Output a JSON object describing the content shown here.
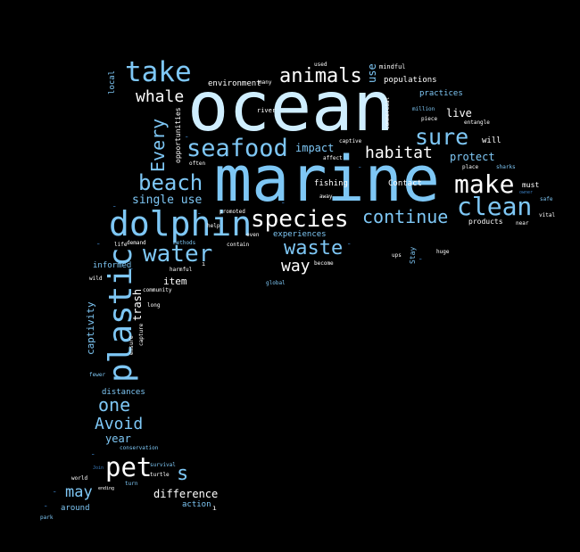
{
  "background_color": "#000000",
  "palette": [
    "#cfeeff",
    "#7ec7f5",
    "#59a9e8",
    "#ffffff",
    "#3b7fc2"
  ],
  "words": {
    "ocean": "ocean",
    "marine": "marine",
    "dolphin": "dolphin",
    "plastic": "plastic",
    "take": "take",
    "seafood": "seafood",
    "species": "species",
    "clean": "clean",
    "make": "make",
    "sure": "sure",
    "beach": "beach",
    "water": "water",
    "animals": "animals",
    "continue": "continue",
    "waste": "waste",
    "pet": "pet",
    "Every": "Every",
    "whale": "whale",
    "habitat": "habitat",
    "one": "one",
    "Avoid": "Avoid",
    "way": "way",
    "single_use": "single use",
    "s": "s",
    "may": "may",
    "impact": "impact",
    "protect": "protect",
    "difference": "difference",
    "live": "live",
    "year": "year",
    "trash": "trash",
    "captivity": "captivity",
    "item": "item",
    "use": "use",
    "populations": "populations",
    "environment": "environment",
    "Contact": "Contact",
    "fishing": "fishing",
    "around": "around",
    "distances": "distances",
    "informed": "informed",
    "experiences": "experiences",
    "practices": "practices",
    "action": "action",
    "local": "local",
    "opportunities": "opportunities",
    "will": "will",
    "products": "products",
    "must": "must",
    "river": "river",
    "mindful": "mindful",
    "commercial": "commercial",
    "captive": "captive",
    "affect": "affect",
    "often": "often",
    "away": "away",
    "promoted": "promoted",
    "demand": "demand",
    "methods": "methods",
    "contain": "contain",
    "help": "help",
    "even": "even",
    "become": "become",
    "life": "life",
    "harmful": "harmful",
    "wild": "wild",
    "community": "community",
    "long": "long",
    "ensure": "ensure",
    "capture": "capture",
    "conservation": "conservation",
    "survival": "survival",
    "turtle": "turtle",
    "world": "world",
    "Join": "Join",
    "turn": "turn",
    "ending": "ending",
    "park": "park",
    "fewer": "fewer",
    "Stay": "Stay",
    "ups": "ups",
    "huge": "huge",
    "global": "global",
    "piece": "piece",
    "million": "million",
    "entangle": "entangle",
    "place": "place",
    "sharks": "sharks",
    "near": "near",
    "vital": "vital",
    "owner": "owner",
    "safe": "safe",
    "many": "many",
    "used": "used"
  }
}
